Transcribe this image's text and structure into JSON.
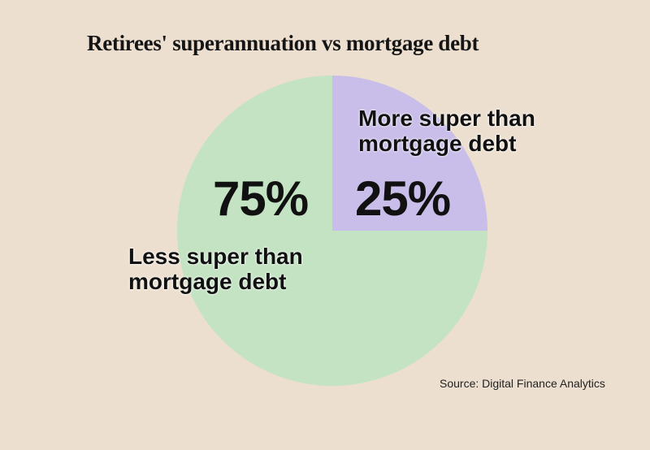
{
  "chart_data": {
    "type": "pie",
    "title": "Retirees' superannuation vs mortgage debt",
    "slices": [
      {
        "label": "More super than mortgage debt",
        "value": 25,
        "display": "25%",
        "color": "#c9bde9"
      },
      {
        "label": "Less super than mortgage debt",
        "value": 75,
        "display": "75%",
        "color": "#c3e3c2"
      }
    ],
    "source": "Source: Digital Finance Analytics"
  },
  "colors": {
    "background": "#ecdfcf"
  }
}
